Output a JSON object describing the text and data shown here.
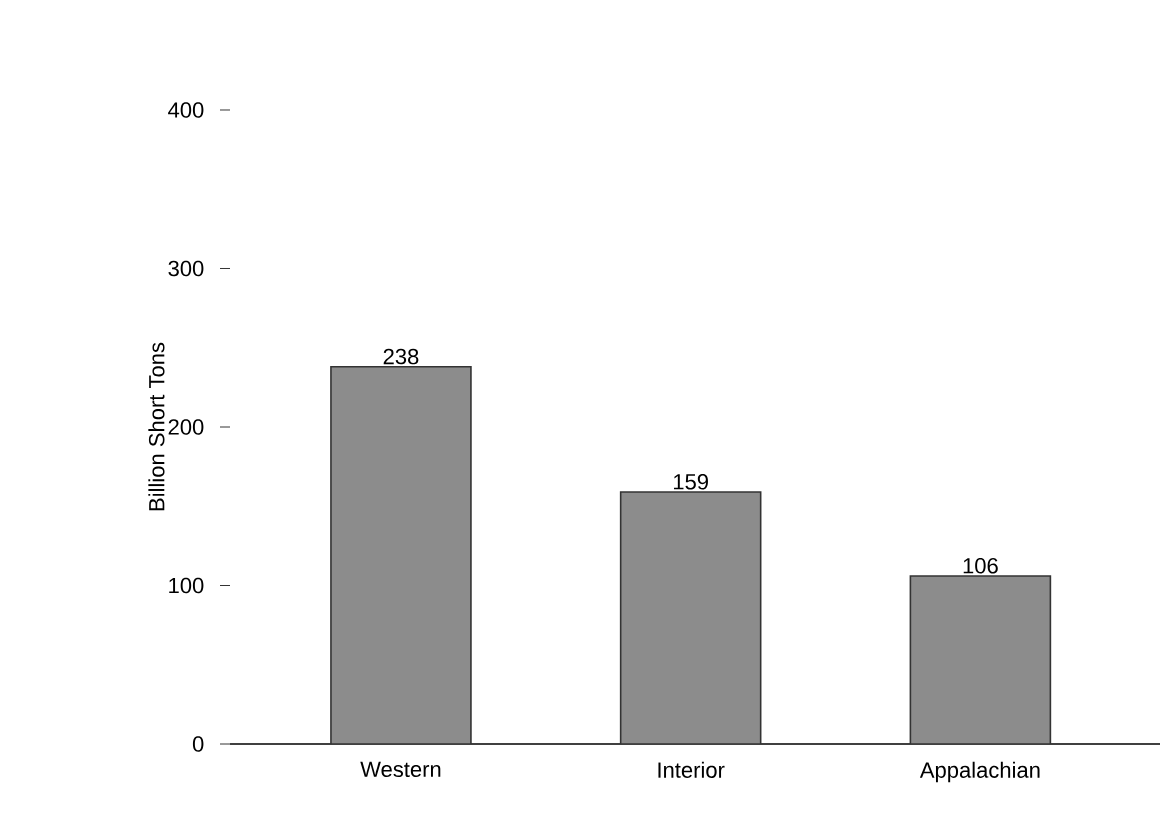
{
  "chart_data": {
    "type": "bar",
    "ylabel": "Billion Short Tons",
    "categories": [
      "Western",
      "Interior",
      "Appalachian"
    ],
    "values": [
      238,
      159,
      106
    ],
    "color": "#8c8c8c",
    "ylim": [
      0,
      400
    ],
    "yticks": [
      0,
      100,
      200,
      300,
      400
    ],
    "data_labels": true,
    "grid": false
  }
}
